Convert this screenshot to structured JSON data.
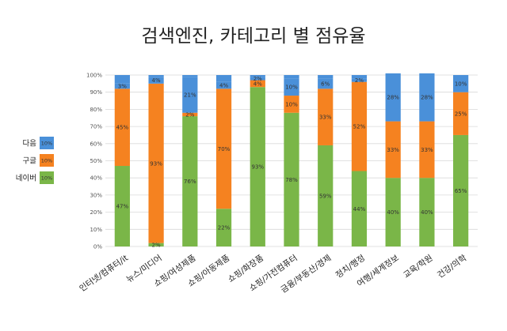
{
  "chart_data": {
    "type": "bar",
    "stacked": "percent",
    "title": "검색엔진, 카테고리 별 점유율",
    "categories": [
      "인터넷/컴퓨터/it",
      "뉴스/미디어",
      "쇼핑/여성제품",
      "쇼핑/아동제품",
      "쇼핑/화장품",
      "쇼핑/가전컴퓨터",
      "금융/부동산/경제",
      "정치/행정",
      "여행/세계정보",
      "교육/학원",
      "건강/의학"
    ],
    "series": [
      {
        "name": "네이버",
        "color": "#7ab648",
        "values": [
          47,
          2,
          76,
          22,
          93,
          78,
          59,
          44,
          40,
          40,
          65
        ]
      },
      {
        "name": "구글",
        "color": "#f58220",
        "values": [
          45,
          93,
          2,
          70,
          4,
          10,
          33,
          52,
          33,
          33,
          25
        ]
      },
      {
        "name": "다음",
        "color": "#4a90d9",
        "values": [
          3,
          4,
          21,
          4,
          2,
          10,
          6,
          2,
          28,
          28,
          10
        ]
      }
    ],
    "legend_sample_labels": [
      "10%",
      "10%",
      "10%"
    ],
    "yticks": [
      "0%",
      "10%",
      "20%",
      "30%",
      "40%",
      "50%",
      "60%",
      "70%",
      "80%",
      "90%",
      "100%"
    ],
    "ylim": [
      0,
      100
    ],
    "legend_position": "left",
    "grid": true
  }
}
